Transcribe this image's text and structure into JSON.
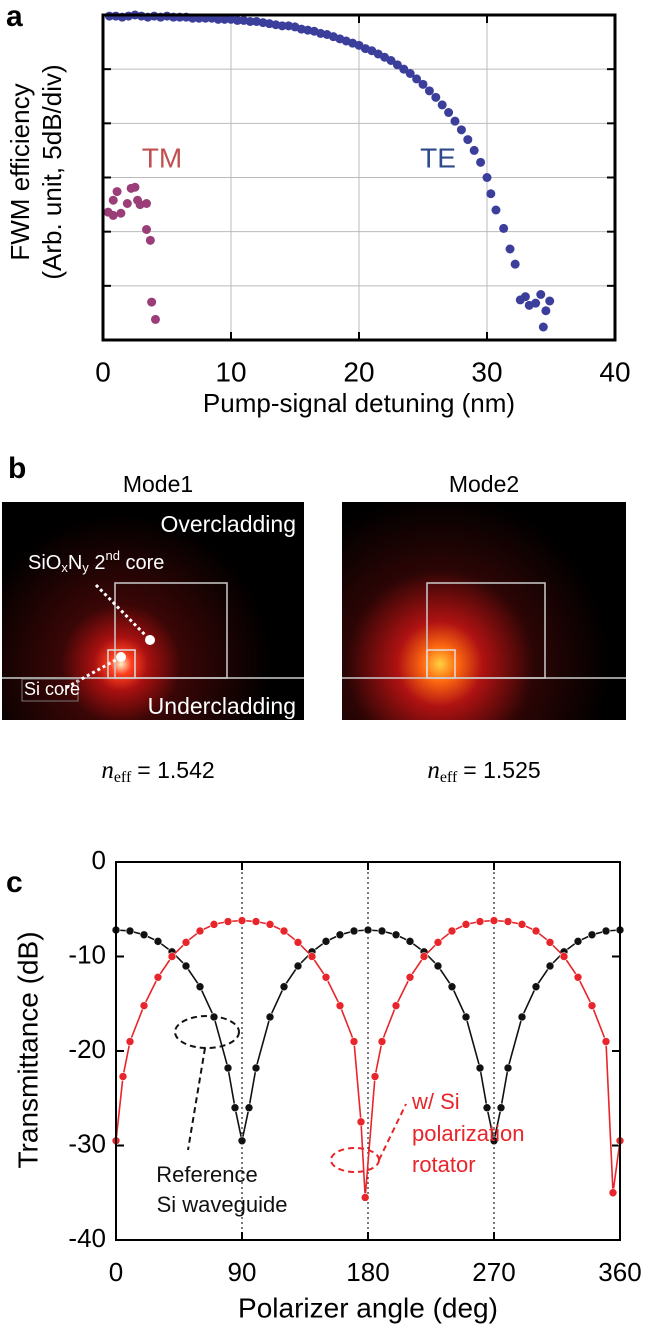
{
  "chart_data": [
    {
      "panel": "a",
      "type": "scatter",
      "xlabel": "Pump-signal detuning (nm)",
      "ylabel": [
        "FWM efficiency",
        "(Arb. unit, 5dB/div)"
      ],
      "xlim": [
        0,
        40
      ],
      "xticks": [
        0,
        10,
        20,
        30,
        40
      ],
      "ylim": [
        -30,
        0
      ],
      "yticks": [
        -30,
        -25,
        -20,
        -15,
        -10,
        -5,
        0
      ],
      "ytick_labels": false,
      "grid": true,
      "series": [
        {
          "name": "TM",
          "color": "#9a3d78",
          "label_color": "#c0504d",
          "x": [
            0.4,
            0.8,
            0.8,
            1.1,
            1.4,
            1.9,
            2.2,
            2.5,
            2.7,
            2.9,
            3.4,
            3.4,
            3.7,
            3.8,
            4.1
          ],
          "values": [
            -18.2,
            -17.1,
            -18.5,
            -16.3,
            -18.3,
            -17.4,
            -16.0,
            -15.9,
            -17.1,
            -17.5,
            -17.4,
            -19.8,
            -20.8,
            -26.5,
            -28.1
          ]
        },
        {
          "name": "TE",
          "color": "#3c3e9c",
          "label_color": "#2e4a8a",
          "x": [
            0.5,
            1,
            1.5,
            2,
            2.5,
            3,
            3.5,
            4,
            4.5,
            5,
            5.5,
            6,
            6.5,
            7,
            7.5,
            8,
            8.5,
            9,
            9.5,
            10,
            10.5,
            11,
            11.5,
            12,
            12.5,
            13,
            13.5,
            14,
            14.5,
            15,
            15.5,
            16,
            16.5,
            17,
            17.5,
            18,
            18.5,
            19,
            19.5,
            20,
            20.5,
            21,
            21.5,
            22,
            22.5,
            23,
            23.5,
            24,
            24.5,
            25,
            25.5,
            26,
            26.5,
            27,
            27.5,
            28,
            28.5,
            29,
            29.5,
            30,
            30.3,
            30.7,
            31.3,
            31.8,
            32.2,
            32.6,
            33,
            33.3,
            33.8,
            34.2,
            34.6,
            34.9,
            34.4
          ],
          "values": [
            -0.1,
            -0.1,
            -0.2,
            -0.1,
            0,
            -0.1,
            -0.2,
            -0.1,
            -0.2,
            -0.1,
            -0.2,
            -0.2,
            -0.2,
            -0.3,
            -0.3,
            -0.3,
            -0.3,
            -0.4,
            -0.4,
            -0.4,
            -0.5,
            -0.5,
            -0.6,
            -0.6,
            -0.7,
            -0.8,
            -0.9,
            -1.0,
            -1.0,
            -1.1,
            -1.3,
            -1.4,
            -1.5,
            -1.7,
            -1.8,
            -2.0,
            -2.2,
            -2.4,
            -2.6,
            -2.8,
            -3.1,
            -3.3,
            -3.6,
            -3.9,
            -4.2,
            -4.6,
            -5.0,
            -5.4,
            -5.9,
            -6.4,
            -7.0,
            -7.6,
            -8.3,
            -9.0,
            -9.8,
            -10.6,
            -11.5,
            -12.5,
            -13.6,
            -15.0,
            -16.5,
            -18.0,
            -19.7,
            -21.6,
            -23.0,
            -26.3,
            -26.0,
            -26.8,
            -26.6,
            -25.8,
            -27.3,
            -26.4,
            -28.8
          ]
        }
      ]
    },
    {
      "panel": "c",
      "type": "line",
      "xlabel": "Polarizer angle (deg)",
      "ylabel": "Transmittance (dB)",
      "xlim": [
        0,
        360
      ],
      "xticks": [
        0,
        90,
        180,
        270,
        360
      ],
      "ylim": [
        -40,
        0
      ],
      "yticks": [
        0,
        -10,
        -20,
        -30,
        -40
      ],
      "grid": "x",
      "series": [
        {
          "annotation": [
            "Reference",
            "Si waveguide"
          ],
          "color": "#111111",
          "x": [
            0,
            10,
            20,
            30,
            40,
            50,
            60,
            70,
            80,
            85,
            90,
            95,
            100,
            110,
            120,
            130,
            140,
            150,
            160,
            170,
            180,
            190,
            200,
            210,
            220,
            230,
            240,
            250,
            260,
            265,
            270,
            275,
            280,
            290,
            300,
            310,
            320,
            330,
            340,
            350,
            360
          ],
          "values": [
            -7.2,
            -7.3,
            -7.7,
            -8.4,
            -9.5,
            -11.0,
            -13.2,
            -16.4,
            -21.8,
            -26.0,
            -29.5,
            -26.0,
            -21.8,
            -16.4,
            -13.2,
            -11.0,
            -9.5,
            -8.4,
            -7.7,
            -7.3,
            -7.2,
            -7.3,
            -7.7,
            -8.4,
            -9.5,
            -11.0,
            -13.2,
            -16.4,
            -21.8,
            -26.0,
            -29.5,
            -26.0,
            -21.8,
            -16.4,
            -13.2,
            -11.0,
            -9.5,
            -8.4,
            -7.7,
            -7.3,
            -7.2
          ]
        },
        {
          "annotation": [
            "w/ Si",
            "polarization",
            "rotator"
          ],
          "color": "#e8252a",
          "x": [
            0,
            5,
            10,
            20,
            30,
            40,
            50,
            60,
            70,
            80,
            90,
            100,
            110,
            120,
            130,
            140,
            150,
            160,
            170,
            175,
            178,
            185,
            190,
            200,
            210,
            220,
            230,
            240,
            250,
            260,
            270,
            280,
            290,
            300,
            310,
            320,
            330,
            340,
            350,
            355,
            360
          ],
          "values": [
            -29.5,
            -22.7,
            -19.0,
            -15.2,
            -12.2,
            -10.0,
            -8.5,
            -7.3,
            -6.6,
            -6.3,
            -6.2,
            -6.3,
            -6.6,
            -7.3,
            -8.5,
            -10.0,
            -12.2,
            -15.2,
            -19.0,
            -27.5,
            -35.5,
            -22.7,
            -19.0,
            -15.2,
            -12.2,
            -10.0,
            -8.5,
            -7.3,
            -6.6,
            -6.3,
            -6.2,
            -6.3,
            -6.6,
            -7.3,
            -8.5,
            -10.0,
            -12.2,
            -15.2,
            -19.0,
            -35.0,
            -29.5
          ]
        }
      ]
    }
  ],
  "panel_b": {
    "panel": "b",
    "modes": [
      {
        "title": "Mode1",
        "neff": "= 1.542"
      },
      {
        "title": "Mode2",
        "neff": "= 1.525"
      }
    ],
    "n_symbol": "n",
    "n_subscript": "eff",
    "labels": {
      "overcladding": "Overcladding",
      "second_core": [
        "SiO",
        "x",
        "N",
        "y",
        " 2",
        "nd",
        " core"
      ],
      "si_core": "Si core",
      "undercladding": "Undercladding"
    }
  }
}
